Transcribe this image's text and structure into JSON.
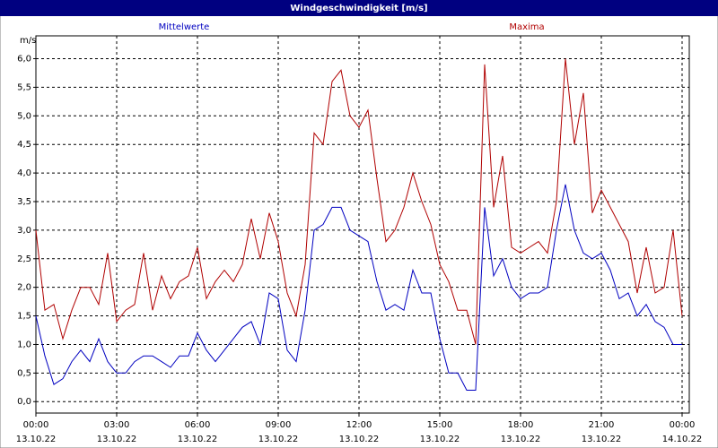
{
  "chart_data": {
    "type": "line",
    "title": "Windgeschwindigkeit [m/s]",
    "y_label": "m/s",
    "x": [
      0,
      20,
      40,
      60,
      80,
      100,
      120,
      140,
      160,
      180,
      200,
      220,
      240,
      260,
      280,
      300,
      320,
      340,
      360,
      380,
      400,
      420,
      440,
      460,
      480,
      500,
      520,
      540,
      560,
      580,
      600,
      620,
      640,
      660,
      680,
      700,
      720,
      740,
      760,
      780,
      800,
      820,
      840,
      860,
      880,
      900,
      920,
      940,
      960,
      980,
      1000,
      1020,
      1040,
      1060,
      1080,
      1100,
      1120,
      1140,
      1160,
      1180,
      1200,
      1220,
      1240,
      1260,
      1280,
      1300,
      1320,
      1340,
      1360,
      1380,
      1400,
      1420,
      1440
    ],
    "series": [
      {
        "name": "Mittelwerte",
        "color": "#0000c0",
        "values": [
          1.5,
          0.8,
          0.3,
          0.4,
          0.7,
          0.9,
          0.7,
          1.1,
          0.7,
          0.5,
          0.5,
          0.7,
          0.8,
          0.8,
          0.7,
          0.6,
          0.8,
          0.8,
          1.2,
          0.9,
          0.7,
          0.9,
          1.1,
          1.3,
          1.4,
          1.0,
          1.9,
          1.8,
          0.9,
          0.7,
          1.6,
          3.0,
          3.1,
          3.4,
          3.4,
          3.0,
          2.9,
          2.8,
          2.1,
          1.6,
          1.7,
          1.6,
          2.3,
          1.9,
          1.9,
          1.1,
          0.5,
          0.5,
          0.2,
          0.2,
          3.4,
          2.2,
          2.5,
          2.0,
          1.8,
          1.9,
          1.9,
          2.0,
          3.0,
          3.8,
          3.0,
          2.6,
          2.5,
          2.6,
          2.3,
          1.8,
          1.9,
          1.5,
          1.7,
          1.4,
          1.3,
          1.0,
          1.0
        ]
      },
      {
        "name": "Maxima",
        "color": "#b00000",
        "values": [
          3.0,
          1.6,
          1.7,
          1.1,
          1.6,
          2.0,
          2.0,
          1.7,
          2.6,
          1.4,
          1.6,
          1.7,
          2.6,
          1.6,
          2.2,
          1.8,
          2.1,
          2.2,
          2.7,
          1.8,
          2.1,
          2.3,
          2.1,
          2.4,
          3.2,
          2.5,
          3.3,
          2.8,
          1.9,
          1.5,
          2.4,
          4.7,
          4.5,
          5.6,
          5.8,
          5.0,
          4.8,
          5.1,
          3.9,
          2.8,
          3.0,
          3.4,
          4.0,
          3.5,
          3.1,
          2.4,
          2.1,
          1.6,
          1.6,
          1.0,
          5.9,
          3.4,
          4.3,
          2.7,
          2.6,
          2.7,
          2.8,
          2.6,
          3.5,
          6.0,
          4.5,
          5.4,
          3.3,
          3.7,
          3.4,
          3.1,
          2.8,
          1.9,
          2.7,
          1.9,
          2.0,
          3.0,
          1.5
        ]
      }
    ],
    "xlim": [
      0,
      1440
    ],
    "xticks": [
      {
        "value": 0,
        "label": "00:00",
        "date": "13.10.22"
      },
      {
        "value": 180,
        "label": "03:00",
        "date": "13.10.22"
      },
      {
        "value": 360,
        "label": "06:00",
        "date": "13.10.22"
      },
      {
        "value": 540,
        "label": "09:00",
        "date": "13.10.22"
      },
      {
        "value": 720,
        "label": "12:00",
        "date": "13.10.22"
      },
      {
        "value": 900,
        "label": "15:00",
        "date": "13.10.22"
      },
      {
        "value": 1080,
        "label": "18:00",
        "date": "13.10.22"
      },
      {
        "value": 1260,
        "label": "21:00",
        "date": "13.10.22"
      },
      {
        "value": 1440,
        "label": "00:00",
        "date": "14.10.22"
      }
    ],
    "ylim": [
      -0.2,
      6.4
    ],
    "yticks": [
      {
        "value": 0,
        "label": "0,0"
      },
      {
        "value": 0.5,
        "label": "0,5"
      },
      {
        "value": 1,
        "label": "1,0"
      },
      {
        "value": 1.5,
        "label": "1,5"
      },
      {
        "value": 2,
        "label": "2,0"
      },
      {
        "value": 2.5,
        "label": "2,5"
      },
      {
        "value": 3,
        "label": "3,0"
      },
      {
        "value": 3.5,
        "label": "3,5"
      },
      {
        "value": 4,
        "label": "4,0"
      },
      {
        "value": 4.5,
        "label": "4,5"
      },
      {
        "value": 5,
        "label": "5,0"
      },
      {
        "value": 5.5,
        "label": "5,5"
      },
      {
        "value": 6,
        "label": "6,0"
      }
    ],
    "grid": true
  }
}
